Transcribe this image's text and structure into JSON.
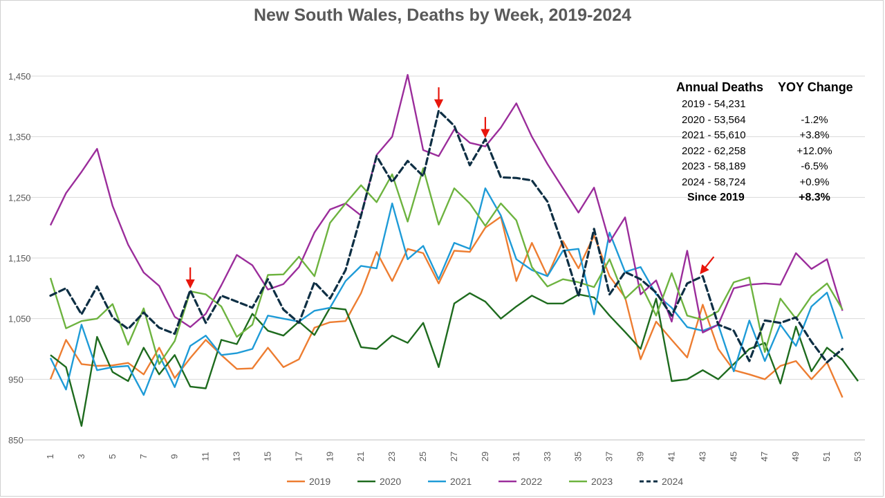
{
  "title": "New South Wales, Deaths by Week, 2019-2024",
  "colors": {
    "2019": "#ED7D31",
    "2020": "#1E6B1E",
    "2021": "#1E9BD7",
    "2022": "#9B2D9B",
    "2023": "#6DB33F",
    "2024": "#0E2F44",
    "arrow": "#E8160C",
    "grid": "#d9d9d9"
  },
  "stats_table": {
    "header": [
      "Annual Deaths",
      "YOY Change"
    ],
    "rows": [
      {
        "label": "2019 - 54,231",
        "change": ""
      },
      {
        "label": "2020 - 53,564",
        "change": "-1.2%"
      },
      {
        "label": "2021 - 55,610",
        "change": "+3.8%"
      },
      {
        "label": "2022 - 62,258",
        "change": "+12.0%"
      },
      {
        "label": "2023 - 58,189",
        "change": "-6.5%"
      },
      {
        "label": "2024 - 58,724",
        "change": "+0.9%"
      }
    ],
    "summary": {
      "label": "Since 2019",
      "change": "+8.3%"
    }
  },
  "chart_data": {
    "type": "line",
    "title": "New South Wales, Deaths by Week, 2019-2024",
    "xlabel": "",
    "ylabel": "",
    "xlim": [
      1,
      53
    ],
    "ylim": [
      850,
      1450
    ],
    "x_ticks": [
      1,
      3,
      5,
      7,
      9,
      11,
      13,
      15,
      17,
      19,
      21,
      23,
      25,
      27,
      29,
      31,
      33,
      35,
      37,
      39,
      41,
      43,
      45,
      47,
      49,
      51,
      53
    ],
    "y_ticks": [
      850,
      950,
      1050,
      1150,
      1250,
      1350,
      1450
    ],
    "y_tick_labels": [
      "850",
      "950",
      "1,050",
      "1,150",
      "1,250",
      "1,350",
      "1,450"
    ],
    "grid": true,
    "legend_position": "bottom",
    "series": [
      {
        "name": "2019",
        "style": "solid",
        "values": [
          950,
          1015,
          975,
          972,
          973,
          977,
          958,
          1002,
          952,
          985,
          1015,
          990,
          967,
          968,
          1002,
          970,
          983,
          1035,
          1044,
          1046,
          1092,
          1160,
          1112,
          1165,
          1158,
          1108,
          1162,
          1160,
          1200,
          1218,
          1112,
          1175,
          1120,
          1178,
          1133,
          1187,
          1120,
          1085,
          983,
          1045,
          1015,
          986,
          1073,
          1000,
          965,
          958,
          950,
          972,
          980,
          950,
          978,
          920
        ]
      },
      {
        "name": "2020",
        "style": "solid",
        "values": [
          990,
          970,
          873,
          1020,
          962,
          947,
          1002,
          958,
          990,
          938,
          935,
          1015,
          1008,
          1058,
          1030,
          1022,
          1045,
          1023,
          1068,
          1065,
          1003,
          1000,
          1022,
          1010,
          1043,
          970,
          1075,
          1092,
          1078,
          1050,
          1070,
          1088,
          1075,
          1075,
          1090,
          1085,
          1055,
          1028,
          1000,
          1083,
          947,
          950,
          965,
          950,
          975,
          1000,
          1010,
          943,
          1037,
          963,
          1002,
          982,
          947
        ]
      },
      {
        "name": "2021",
        "style": "solid",
        "values": [
          985,
          933,
          1040,
          965,
          970,
          972,
          924,
          990,
          937,
          1005,
          1022,
          990,
          993,
          1000,
          1055,
          1050,
          1045,
          1063,
          1068,
          1112,
          1137,
          1133,
          1240,
          1148,
          1170,
          1115,
          1175,
          1165,
          1265,
          1220,
          1148,
          1130,
          1120,
          1162,
          1165,
          1057,
          1192,
          1127,
          1135,
          1090,
          1068,
          1036,
          1030,
          1040,
          963,
          1047,
          980,
          1040,
          1005,
          1070,
          1093,
          1017
        ]
      },
      {
        "name": "2022",
        "style": "solid",
        "values": [
          1204,
          1257,
          1292,
          1330,
          1236,
          1172,
          1126,
          1104,
          1053,
          1036,
          1058,
          1105,
          1155,
          1138,
          1098,
          1107,
          1135,
          1192,
          1230,
          1240,
          1220,
          1320,
          1350,
          1452,
          1328,
          1318,
          1362,
          1340,
          1334,
          1365,
          1405,
          1350,
          1305,
          1265,
          1225,
          1266,
          1176,
          1217,
          1090,
          1113,
          1045,
          1162,
          1027,
          1040,
          1100,
          1106,
          1108,
          1106,
          1158,
          1132,
          1148,
          1063
        ]
      },
      {
        "name": "2023",
        "style": "solid",
        "values": [
          1117,
          1034,
          1046,
          1050,
          1074,
          1007,
          1067,
          975,
          1013,
          1095,
          1090,
          1070,
          1020,
          1040,
          1122,
          1123,
          1152,
          1120,
          1208,
          1240,
          1270,
          1242,
          1288,
          1210,
          1298,
          1205,
          1265,
          1240,
          1203,
          1240,
          1212,
          1135,
          1103,
          1115,
          1110,
          1102,
          1148,
          1083,
          1107,
          1055,
          1125,
          1055,
          1048,
          1062,
          1110,
          1118,
          995,
          1083,
          1050,
          1087,
          1108,
          1065
        ]
      },
      {
        "name": "2024",
        "style": "dashed",
        "values": [
          1088,
          1100,
          1057,
          1103,
          1052,
          1033,
          1060,
          1035,
          1025,
          1097,
          1043,
          1088,
          1078,
          1068,
          1115,
          1065,
          1043,
          1110,
          1083,
          1130,
          1220,
          1318,
          1275,
          1310,
          1285,
          1393,
          1368,
          1303,
          1346,
          1283,
          1282,
          1278,
          1243,
          1170,
          1087,
          1198,
          1090,
          1127,
          1115,
          1093,
          1055,
          1108,
          1120,
          1040,
          1030,
          980,
          1047,
          1043,
          1052,
          1012,
          978,
          1000
        ]
      }
    ],
    "annotations": [
      {
        "type": "arrow",
        "x": 10,
        "y": 1098,
        "direction": "down"
      },
      {
        "type": "arrow",
        "x": 26,
        "y": 1395,
        "direction": "down"
      },
      {
        "type": "arrow",
        "x": 29,
        "y": 1346,
        "direction": "down"
      },
      {
        "type": "arrow",
        "x": 43,
        "y": 1120,
        "direction": "down-left"
      }
    ]
  }
}
